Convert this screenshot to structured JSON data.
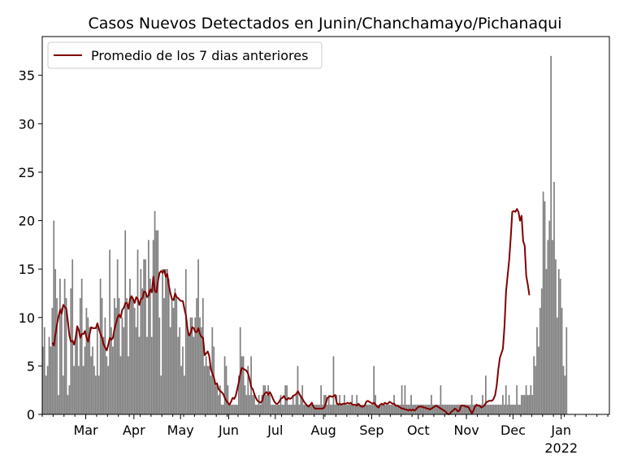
{
  "chart_data": {
    "type": "bar",
    "title": "Casos Nuevos Detectados en Junin/Chanchamayo/Pichanaqui",
    "xlabel": "",
    "ylabel": "",
    "x_range": [
      "2021-02-01",
      "2022-01-31"
    ],
    "ylim": [
      0,
      39
    ],
    "y_ticks": [
      0,
      5,
      10,
      15,
      20,
      25,
      30,
      35
    ],
    "x_ticks": [
      {
        "date": "2021-03-01",
        "label": "Mar"
      },
      {
        "date": "2021-04-01",
        "label": "Apr"
      },
      {
        "date": "2021-05-01",
        "label": "May"
      },
      {
        "date": "2021-06-01",
        "label": "Jun"
      },
      {
        "date": "2021-07-01",
        "label": "Jul"
      },
      {
        "date": "2021-08-01",
        "label": "Aug"
      },
      {
        "date": "2021-09-01",
        "label": "Sep"
      },
      {
        "date": "2021-10-01",
        "label": "Oct"
      },
      {
        "date": "2021-11-01",
        "label": "Nov"
      },
      {
        "date": "2021-12-01",
        "label": "Dec"
      },
      {
        "date": "2022-01-01",
        "label": "Jan",
        "sublabel": "2022"
      }
    ],
    "grid": false,
    "legend_position": "top-left",
    "bar_color": "#808080",
    "line_color": "#800000",
    "series": [
      {
        "kind": "bar",
        "start_date": "2021-02-01",
        "values": [
          7,
          9,
          4,
          5,
          8,
          7,
          11,
          20,
          15,
          12,
          2,
          14,
          11,
          4,
          14,
          12,
          2,
          3,
          13,
          16,
          5,
          8,
          9,
          5,
          12,
          14,
          5,
          7,
          11,
          10,
          9,
          6,
          7,
          5,
          4,
          9,
          4,
          14,
          12,
          8,
          10,
          6,
          5,
          17,
          9,
          7,
          12,
          11,
          16,
          12,
          6,
          10,
          9,
          19,
          12,
          6,
          14,
          12,
          12,
          11,
          9,
          17,
          8,
          15,
          13,
          16,
          16,
          8,
          18,
          14,
          8,
          18,
          21,
          19,
          19,
          10,
          4,
          15,
          12,
          15,
          15,
          14,
          9,
          12,
          11,
          13,
          12,
          8,
          9,
          5,
          7,
          4,
          15,
          9,
          8,
          10,
          10,
          8,
          10,
          12,
          16,
          10,
          9,
          12,
          5,
          6,
          5,
          5,
          4,
          9,
          7,
          3,
          3,
          2,
          3,
          1,
          1,
          6,
          5,
          3,
          1,
          1,
          1,
          1,
          1,
          1,
          4,
          9,
          6,
          6,
          3,
          2,
          5,
          2,
          6,
          2,
          2,
          1,
          1,
          2,
          1,
          2,
          3,
          3,
          2,
          3,
          2,
          1,
          1,
          1,
          1,
          1,
          1,
          2,
          1,
          1,
          3,
          3,
          1,
          1,
          1,
          2,
          1,
          2,
          5,
          1,
          2,
          3,
          1,
          1,
          1,
          1,
          1,
          1,
          1,
          1,
          1,
          1,
          1,
          3,
          1,
          2,
          2,
          1,
          2,
          1,
          1,
          6,
          1,
          2,
          1,
          2,
          1,
          1,
          2,
          1,
          1,
          1,
          1,
          2,
          1,
          1,
          2,
          1,
          1,
          1,
          1,
          1,
          1,
          1,
          1,
          1,
          1,
          5,
          2,
          1,
          1,
          1,
          1,
          1,
          1,
          1,
          1,
          1,
          1,
          1,
          2,
          1,
          1,
          1,
          1,
          3,
          1,
          3,
          1,
          1,
          1,
          2,
          1,
          1,
          1,
          1,
          1,
          1,
          1,
          1,
          1,
          1,
          1,
          1,
          2,
          1,
          1,
          1,
          1,
          1,
          3,
          1,
          1,
          1,
          1,
          1,
          1,
          1,
          1,
          1,
          1,
          1,
          1,
          1,
          1,
          1,
          1,
          1,
          1,
          1,
          2,
          1,
          1,
          1,
          1,
          1,
          1,
          2,
          1,
          4,
          1,
          1,
          1,
          1,
          1,
          1,
          1,
          1,
          1,
          1,
          2,
          1,
          3,
          1,
          2,
          1,
          1,
          1,
          1,
          3,
          1,
          1,
          2,
          2,
          2,
          3,
          2,
          2,
          3,
          2,
          6,
          5,
          9,
          7,
          11,
          13,
          23,
          22,
          15,
          18,
          20,
          37,
          18,
          24,
          16,
          10,
          15,
          14,
          11,
          5,
          4,
          9
        ]
      },
      {
        "kind": "line",
        "name": "Promedio de los 7 dias anteriores",
        "start_date": "2021-02-07",
        "values": [
          7.4,
          7.1,
          8.3,
          9.3,
          10.1,
          10.8,
          10.4,
          11.3,
          11.1,
          10.9,
          9.6,
          8.1,
          7.5,
          7.6,
          7.2,
          7.9,
          9.1,
          8.7,
          7.9,
          8.3,
          8.3,
          8.6,
          7.9,
          7.5,
          8.3,
          9.0,
          8.9,
          8.9,
          8.9,
          9.4,
          8.8,
          8.3,
          7.9,
          7.2,
          6.9,
          6.6,
          7.2,
          7.9,
          7.7,
          7.9,
          8.8,
          9.4,
          10.0,
          10.3,
          10.0,
          10.8,
          11.0,
          11.5,
          11.5,
          10.9,
          11.9,
          12.2,
          11.9,
          11.5,
          12.1,
          11.9,
          11.3,
          11.9,
          12.0,
          12.7,
          12.6,
          12.1,
          12.3,
          12.9,
          12.6,
          14.2,
          12.7,
          12.6,
          13.8,
          14.6,
          14.8,
          14.6,
          14.9,
          14.2,
          14.5,
          13.3,
          12.5,
          11.9,
          11.8,
          12.5,
          12.1,
          12.0,
          11.8,
          11.7,
          11.7,
          10.9,
          10.2,
          8.8,
          8.1,
          8.4,
          9.0,
          8.9,
          8.5,
          8.5,
          8.9,
          8.3,
          8.0,
          7.9,
          6.1,
          6.3,
          6.5,
          6.0,
          4.7,
          4.2,
          3.8,
          3.1,
          3.2,
          2.6,
          2.4,
          2.3,
          2.1,
          1.7,
          1.4,
          1.2,
          1.0,
          1.3,
          1.7,
          1.6,
          1.9,
          2.6,
          3.3,
          4.2,
          4.8,
          4.7,
          4.6,
          4.5,
          4.2,
          3.6,
          2.8,
          2.6,
          2.1,
          1.7,
          1.4,
          1.3,
          1.2,
          1.4,
          2.0,
          2.2,
          2.3,
          2.0,
          2.3,
          2.0,
          1.6,
          1.3,
          1.1,
          1.1,
          1.3,
          1.6,
          1.7,
          1.9,
          1.6,
          1.5,
          1.7,
          1.6,
          1.7,
          1.9,
          2.0,
          2.1,
          2.4,
          2.1,
          1.8,
          1.6,
          1.3,
          1.1,
          0.9,
          0.8,
          1.0,
          1.2,
          0.8,
          0.6,
          0.6,
          0.6,
          0.6,
          0.6,
          0.6,
          0.7,
          1.1,
          1.7,
          1.8,
          1.9,
          1.8,
          1.9,
          2.0,
          1.2,
          1.0,
          1.1,
          1.0,
          1.1,
          1.1,
          1.1,
          1.2,
          1.1,
          1.2,
          1.0,
          1.0,
          1.0,
          0.9,
          1.1,
          0.9,
          0.8,
          0.8,
          0.9,
          1.3,
          1.4,
          1.3,
          1.2,
          1.1,
          1.2,
          1.0,
          0.8,
          0.7,
          1.0,
          1.1,
          1.0,
          1.2,
          1.1,
          1.1,
          1.3,
          1.2,
          1.1,
          1.1,
          0.9,
          0.9,
          0.8,
          0.7,
          0.6,
          0.6,
          0.5,
          0.5,
          0.4,
          0.5,
          0.4,
          0.5,
          0.4,
          0.5,
          0.7,
          0.8,
          0.8,
          0.8,
          0.7,
          0.7,
          0.6,
          0.6,
          0.5,
          0.6,
          0.7,
          0.8,
          0.9,
          0.8,
          0.7,
          0.6,
          0.5,
          0.4,
          0.3,
          0.1,
          0.0,
          0.1,
          0.3,
          0.4,
          0.6,
          0.5,
          0.3,
          0.4,
          0.9,
          0.9,
          0.9,
          0.8,
          0.8,
          0.7,
          0.4,
          0.1,
          0.4,
          0.8,
          1.0,
          0.9,
          0.9,
          0.7,
          0.8,
          0.9,
          1.2,
          1.3,
          1.4,
          1.4,
          1.4,
          1.6,
          2.0,
          3.0,
          4.6,
          5.8,
          6.3,
          6.8,
          9.1,
          12.7,
          14.3,
          15.9,
          18.2,
          20.9,
          21.0,
          20.9,
          21.2,
          20.9,
          20.0,
          20.5,
          17.9,
          17.4,
          14.3,
          13.4,
          12.3
        ]
      }
    ]
  },
  "legend": {
    "label": "Promedio de los 7 dias anteriores"
  }
}
